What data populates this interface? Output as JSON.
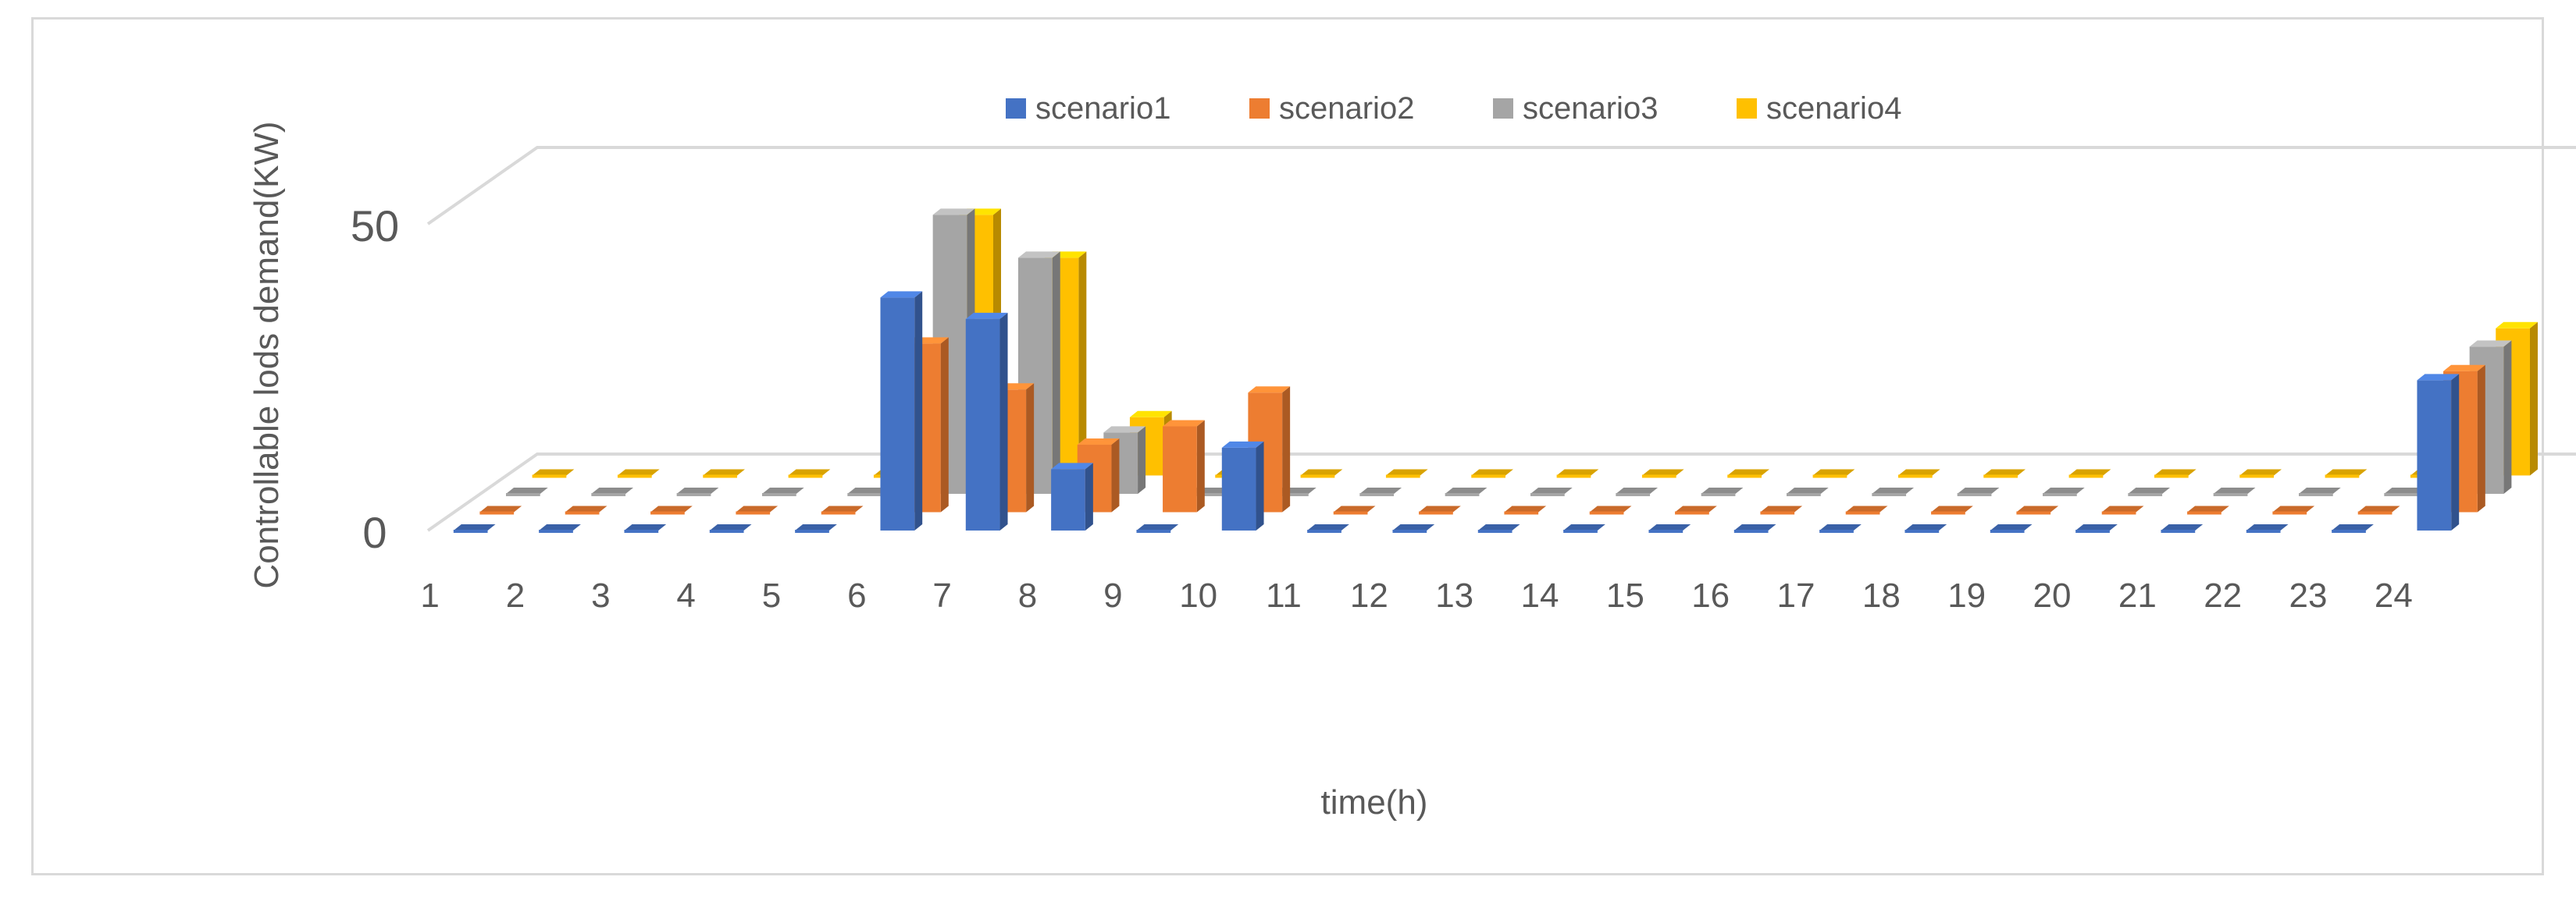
{
  "chart_data": {
    "type": "bar",
    "style": "3d-column-depth",
    "title": "",
    "xlabel": "time(h)",
    "ylabel": "Controllable lods demand(KW)",
    "categories": [
      "1",
      "2",
      "3",
      "4",
      "5",
      "6",
      "7",
      "8",
      "9",
      "10",
      "11",
      "12",
      "13",
      "14",
      "15",
      "16",
      "17",
      "18",
      "19",
      "20",
      "21",
      "22",
      "23",
      "24"
    ],
    "y_ticks": [
      "0",
      "50"
    ],
    "ylim": [
      0,
      50
    ],
    "legend_position": "top",
    "grid": true,
    "series": [
      {
        "name": "scenario1",
        "color": "#4472C4",
        "values": [
          0,
          0,
          0,
          0,
          0,
          38,
          34.5,
          10,
          0,
          13.5,
          0,
          0,
          0,
          0,
          0,
          0,
          0,
          0,
          0,
          0,
          0,
          0,
          0,
          24.5
        ]
      },
      {
        "name": "scenario2",
        "color": "#ED7D31",
        "values": [
          0,
          0,
          0,
          0,
          0,
          27.5,
          20,
          11,
          14,
          19.5,
          0,
          0,
          0,
          0,
          0,
          0,
          0,
          0,
          0,
          0,
          0,
          0,
          0,
          23
        ]
      },
      {
        "name": "scenario3",
        "color": "#A5A5A5",
        "values": [
          0,
          0,
          0,
          0,
          0,
          45.5,
          38.5,
          10,
          0,
          0,
          0,
          0,
          0,
          0,
          0,
          0,
          0,
          0,
          0,
          0,
          0,
          0,
          0,
          24
        ]
      },
      {
        "name": "scenario4",
        "color": "#FFC000",
        "values": [
          0,
          0,
          0,
          0,
          0,
          42.5,
          35.5,
          9.5,
          0,
          0,
          0,
          0,
          0,
          0,
          0,
          0,
          0,
          0,
          0,
          0,
          0,
          0,
          0,
          24
        ]
      }
    ]
  }
}
